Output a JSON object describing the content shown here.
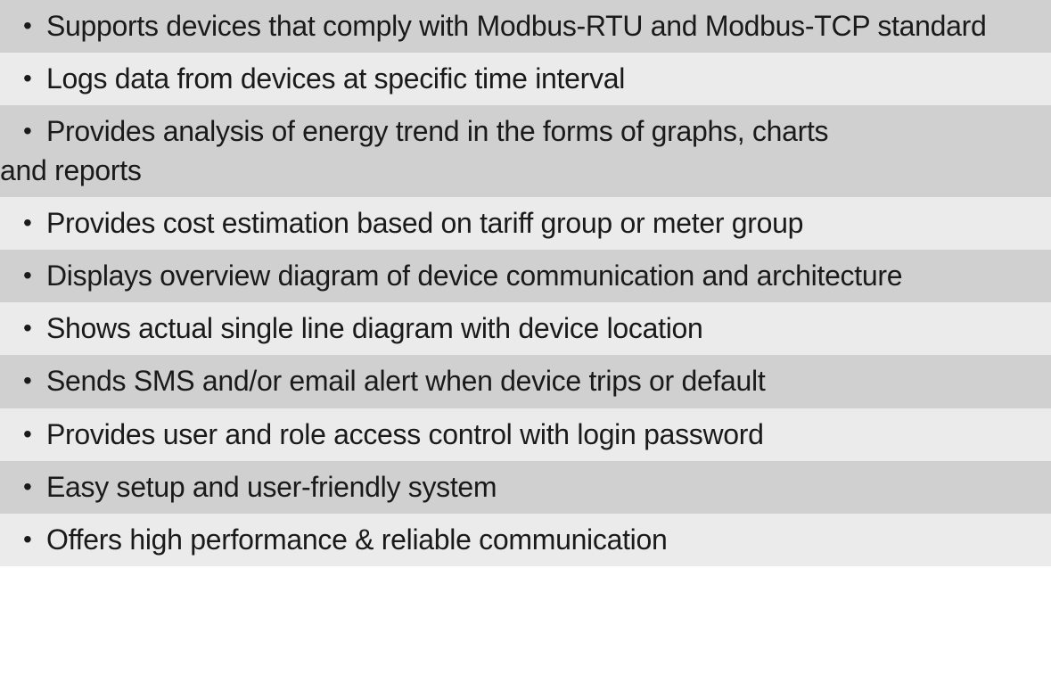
{
  "featureList": {
    "type": "striped-bullet-list",
    "colors": {
      "darkRow": "#d0d0d0",
      "lightRow": "#ebebeb",
      "text": "#1a1a1a",
      "bullet": "#1a1a1a"
    },
    "typography": {
      "fontSize": 32,
      "fontWeight": 300,
      "fontFamily": "Helvetica Neue",
      "lineHeight": 1.35
    },
    "bulletChar": "•",
    "items": [
      {
        "text": "Supports devices that comply with Modbus-RTU and Modbus-TCP standard",
        "shade": "dark"
      },
      {
        "text": "Logs data from devices at specific time interval",
        "shade": "light"
      },
      {
        "text": "Provides analysis of energy trend in the forms of graphs, charts",
        "continuation": "and reports",
        "shade": "dark"
      },
      {
        "text": "Provides cost estimation based on tariff group or meter group",
        "shade": "light"
      },
      {
        "text": "Displays overview diagram of device communication and architecture",
        "shade": "dark"
      },
      {
        "text": "Shows actual single line diagram with device location",
        "shade": "light"
      },
      {
        "text": "Sends SMS and/or email alert when device trips or default",
        "shade": "dark"
      },
      {
        "text": "Provides user and role access control with login password",
        "shade": "light"
      },
      {
        "text": "Easy setup and user-friendly system",
        "shade": "dark"
      },
      {
        "text": "Offers high performance & reliable communication",
        "shade": "light"
      }
    ]
  }
}
